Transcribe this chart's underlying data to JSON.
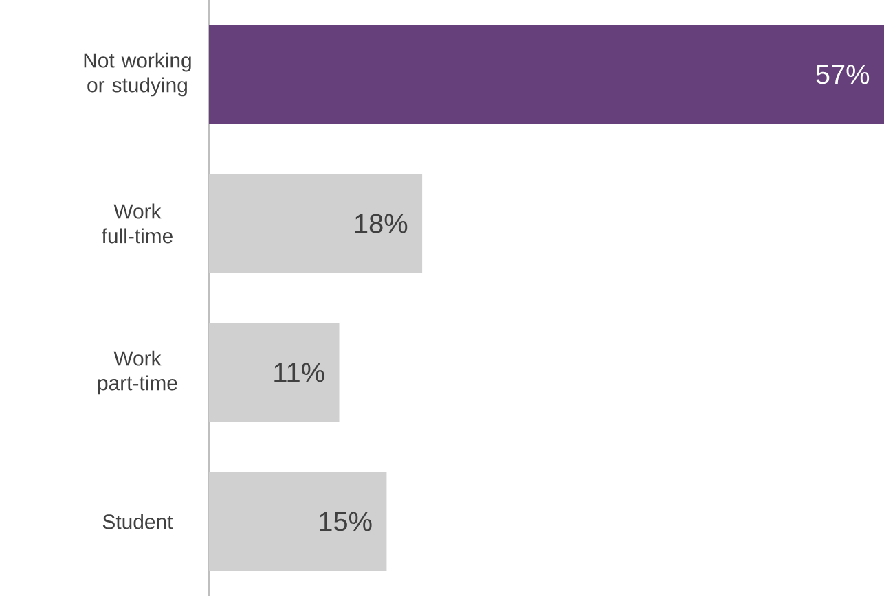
{
  "chart_data": {
    "type": "bar",
    "orientation": "horizontal",
    "categories": [
      "Not working or studying",
      "Work full-time",
      "Work part-time",
      "Student"
    ],
    "values": [
      57,
      18,
      11,
      15
    ],
    "colors": [
      "#65407b",
      "#d0d0d0",
      "#d0d0d0",
      "#d0d0d0"
    ],
    "value_labels": [
      "57%",
      "18%",
      "11%",
      "15%"
    ]
  }
}
